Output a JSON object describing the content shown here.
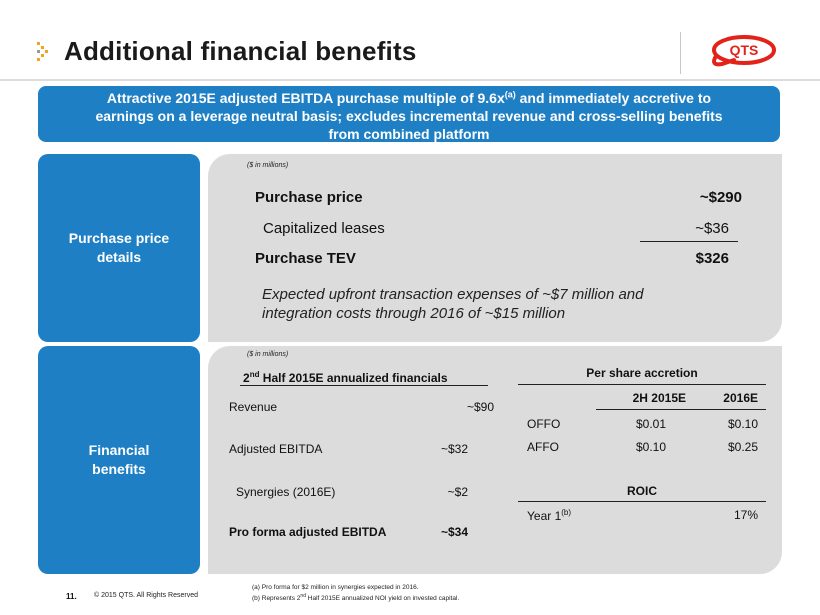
{
  "header": {
    "title": "Additional financial benefits",
    "logo_text": "QTS"
  },
  "banner": {
    "line1_pre": "Attractive 2015E adjusted EBITDA purchase multiple of 9.6x",
    "line1_sup": "(a)",
    "line1_post": " and immediately accretive to",
    "line2": "earnings on a leverage neutral basis; excludes incremental revenue and cross-selling benefits",
    "line3": "from combined platform"
  },
  "sections": {
    "purchase_label": "Purchase price details",
    "financial_label": "Financial benefits"
  },
  "purchase": {
    "units_note": "($ in millions)",
    "rows": [
      {
        "label": "Purchase price",
        "value": "~$290"
      },
      {
        "label": "Capitalized leases",
        "value": "~$36"
      },
      {
        "label": "Purchase TEV",
        "value": "$326"
      }
    ],
    "note_line1": "Expected upfront transaction expenses of ~$7 million and",
    "note_line2": "integration costs through 2016 of ~$15 million"
  },
  "financials": {
    "units_note": "($ in millions)",
    "left_title_pre": "2",
    "left_title_sup": "nd",
    "left_title_post": " Half 2015E annualized financials",
    "left_rows": [
      {
        "label": "Revenue",
        "value": "~$90"
      },
      {
        "label": "Adjusted EBITDA",
        "value": "~$32"
      },
      {
        "label": "Synergies (2016E)",
        "value": "~$2"
      },
      {
        "label": "Pro forma adjusted EBITDA",
        "value": "~$34"
      }
    ],
    "accretion_title": "Per share accretion",
    "accretion_cols": [
      "2H 2015E",
      "2016E"
    ],
    "accretion_rows": [
      {
        "label": "OFFO",
        "v1": "$0.01",
        "v2": "$0.10"
      },
      {
        "label": "AFFO",
        "v1": "$0.10",
        "v2": "$0.25"
      }
    ],
    "roic_title": "ROIC",
    "roic_label": "Year 1",
    "roic_sup": "(b)",
    "roic_value": "17%"
  },
  "footer": {
    "page_number": "11.",
    "copyright": "© 2015 QTS. All Rights Reserved",
    "footnote_a": "(a) Pro forma for $2 million in synergies expected in 2016.",
    "footnote_b_pre": "(b) Represents 2",
    "footnote_b_sup": "nd",
    "footnote_b_post": " Half 2015E annualized NOI yield on invested capital."
  },
  "colors": {
    "accent_blue": "#1f7fc4",
    "panel_gray": "#dcdcdc",
    "brand_red": "#e2231a",
    "chevron_orange": "#f4a21d"
  }
}
